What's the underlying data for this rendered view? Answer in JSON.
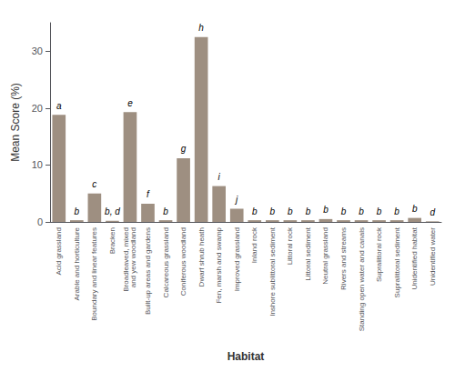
{
  "chart_data": {
    "type": "bar",
    "xlabel": "Habitat",
    "ylabel": "Mean Score (%)",
    "categories": [
      "Acid grassland",
      "Arable and horticulture",
      "Boundary and linear features",
      "Bracken",
      "Broadleaved, mixed\nand yew woodland",
      "Built-up areas and gardens",
      "Calcareous grassland",
      "Coniferous woodland",
      "Dwarf shrub heath",
      "Fen, marsh and swamp",
      "Improved grassland",
      "Inland rock",
      "Inshore sublittoral sediment",
      "Littoral rock",
      "Littoral sediment",
      "Neutral grassland",
      "Rivers and streams",
      "Standing open water and canals",
      "Supralittoral rock",
      "Supralittoral sediment",
      "Unidentified habitat",
      "Unidentified water"
    ],
    "values": [
      18.8,
      0.3,
      5.0,
      0.2,
      19.3,
      3.2,
      0.3,
      11.2,
      32.5,
      6.3,
      2.3,
      0.3,
      0.3,
      0.3,
      0.3,
      0.5,
      0.3,
      0.3,
      0.3,
      0.3,
      0.7,
      0.1
    ],
    "annotations": [
      "a",
      "b",
      "c",
      "b, d",
      "e",
      "f",
      "b",
      "g",
      "h",
      "i",
      "j",
      "b",
      "b",
      "b",
      "b",
      "b",
      "b",
      "b",
      "b",
      "b",
      "b",
      "d"
    ],
    "color": "#9e8f81",
    "ylim": [
      0,
      35
    ],
    "yticks": [
      0,
      10,
      20,
      30
    ],
    "grid": false
  }
}
